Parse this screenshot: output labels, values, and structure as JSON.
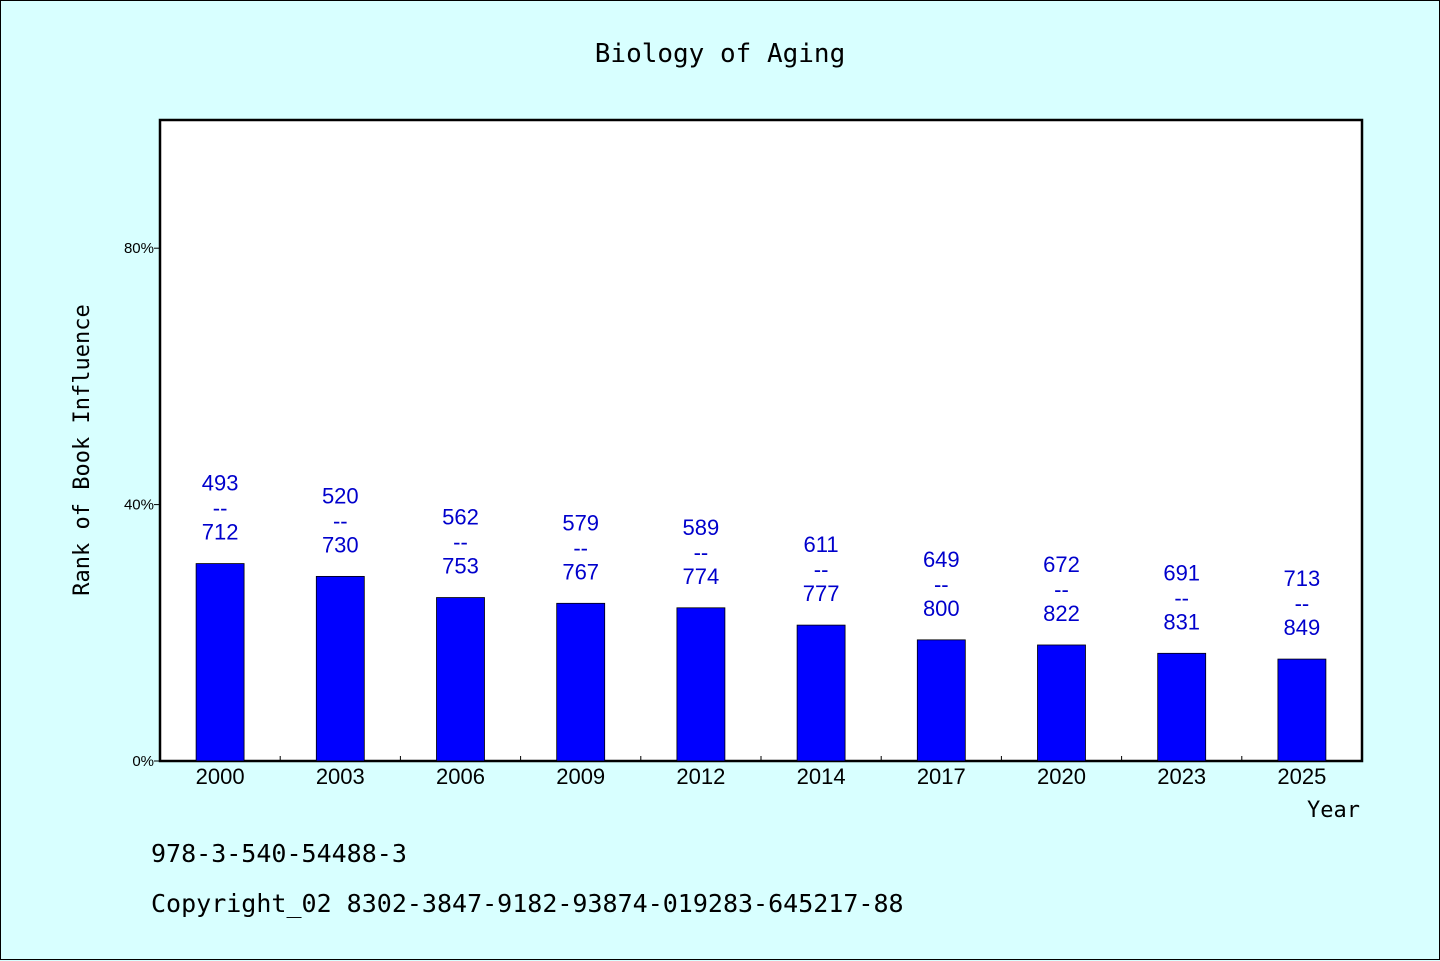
{
  "footer": {
    "isbn": "978-3-540-54488-3",
    "copyright": "Copyright_02 8302-3847-9182-93874-019283-645217-88"
  },
  "colors": {
    "background": "#d8ffff",
    "plot_background": "#ffffff",
    "bar": "#0000ff",
    "data_label": "#0000cc"
  },
  "chart_data": {
    "type": "bar",
    "title": "Biology of Aging",
    "xlabel": "Year",
    "ylabel": "Rank of Book Influence",
    "categories": [
      "2000",
      "2003",
      "2006",
      "2009",
      "2012",
      "2014",
      "2017",
      "2020",
      "2023",
      "2025"
    ],
    "values": [
      30.8,
      28.8,
      25.5,
      24.6,
      23.9,
      21.2,
      18.9,
      18.1,
      16.8,
      15.9
    ],
    "label_top": [
      "493",
      "520",
      "562",
      "579",
      "589",
      "611",
      "649",
      "672",
      "691",
      "713"
    ],
    "label_sep": "--",
    "label_bottom": [
      "712",
      "730",
      "753",
      "767",
      "774",
      "777",
      "800",
      "822",
      "831",
      "849"
    ],
    "yticks": [
      0,
      40,
      80
    ],
    "ytick_labels": [
      "0%",
      "40%",
      "80%"
    ],
    "ylim": [
      0,
      100
    ],
    "grid": false,
    "legend": "none"
  }
}
